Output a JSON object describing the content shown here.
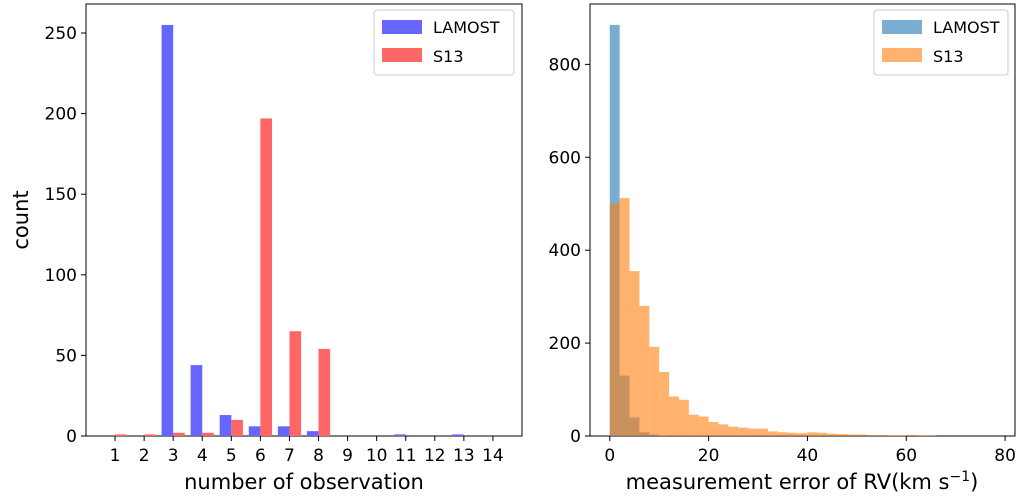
{
  "chart_data": [
    {
      "type": "bar",
      "xlabel": "number of observation",
      "ylabel": "count",
      "categories": [
        "1",
        "2",
        "3",
        "4",
        "5",
        "6",
        "7",
        "8",
        "9",
        "10",
        "11",
        "12",
        "13",
        "14"
      ],
      "xlim": [
        0,
        15
      ],
      "ylim": [
        0,
        268
      ],
      "yticks": [
        0,
        50,
        100,
        150,
        200,
        250
      ],
      "legend_position": "top-right",
      "series": [
        {
          "name": "LAMOST",
          "color": "#6666ff",
          "values": [
            0,
            0,
            255,
            44,
            13,
            6,
            6,
            3,
            0,
            0,
            1,
            0,
            1,
            0
          ]
        },
        {
          "name": "S13",
          "color": "#ff6666",
          "values": [
            1,
            1,
            2,
            2,
            10,
            197,
            65,
            54,
            0,
            0,
            0,
            0,
            0,
            0
          ]
        }
      ]
    },
    {
      "type": "histogram",
      "xlabel": "measurement error of RV(km s",
      "xlabel_sup": "−1",
      "xlabel_close": ")",
      "xlim": [
        -4,
        82
      ],
      "ylim": [
        0,
        930
      ],
      "xticks": [
        0,
        20,
        40,
        60,
        80
      ],
      "yticks": [
        0,
        200,
        400,
        600,
        800
      ],
      "legend_position": "top-right",
      "series": [
        {
          "name": "LAMOST",
          "color": "#1f77b4",
          "bin_start": 0,
          "bin_width": 2,
          "values": [
            885,
            130,
            40,
            8,
            3,
            1
          ]
        },
        {
          "name": "S13",
          "color": "#ff7f0e",
          "bin_start": 0,
          "bin_width": 2,
          "values": [
            500,
            512,
            355,
            280,
            192,
            138,
            85,
            78,
            46,
            42,
            30,
            25,
            20,
            18,
            16,
            16,
            10,
            8,
            7,
            6,
            8,
            7,
            5,
            4,
            3,
            3,
            2,
            2,
            1,
            1,
            2,
            1,
            1,
            0,
            0,
            0,
            0,
            0,
            0,
            0
          ]
        }
      ]
    }
  ]
}
